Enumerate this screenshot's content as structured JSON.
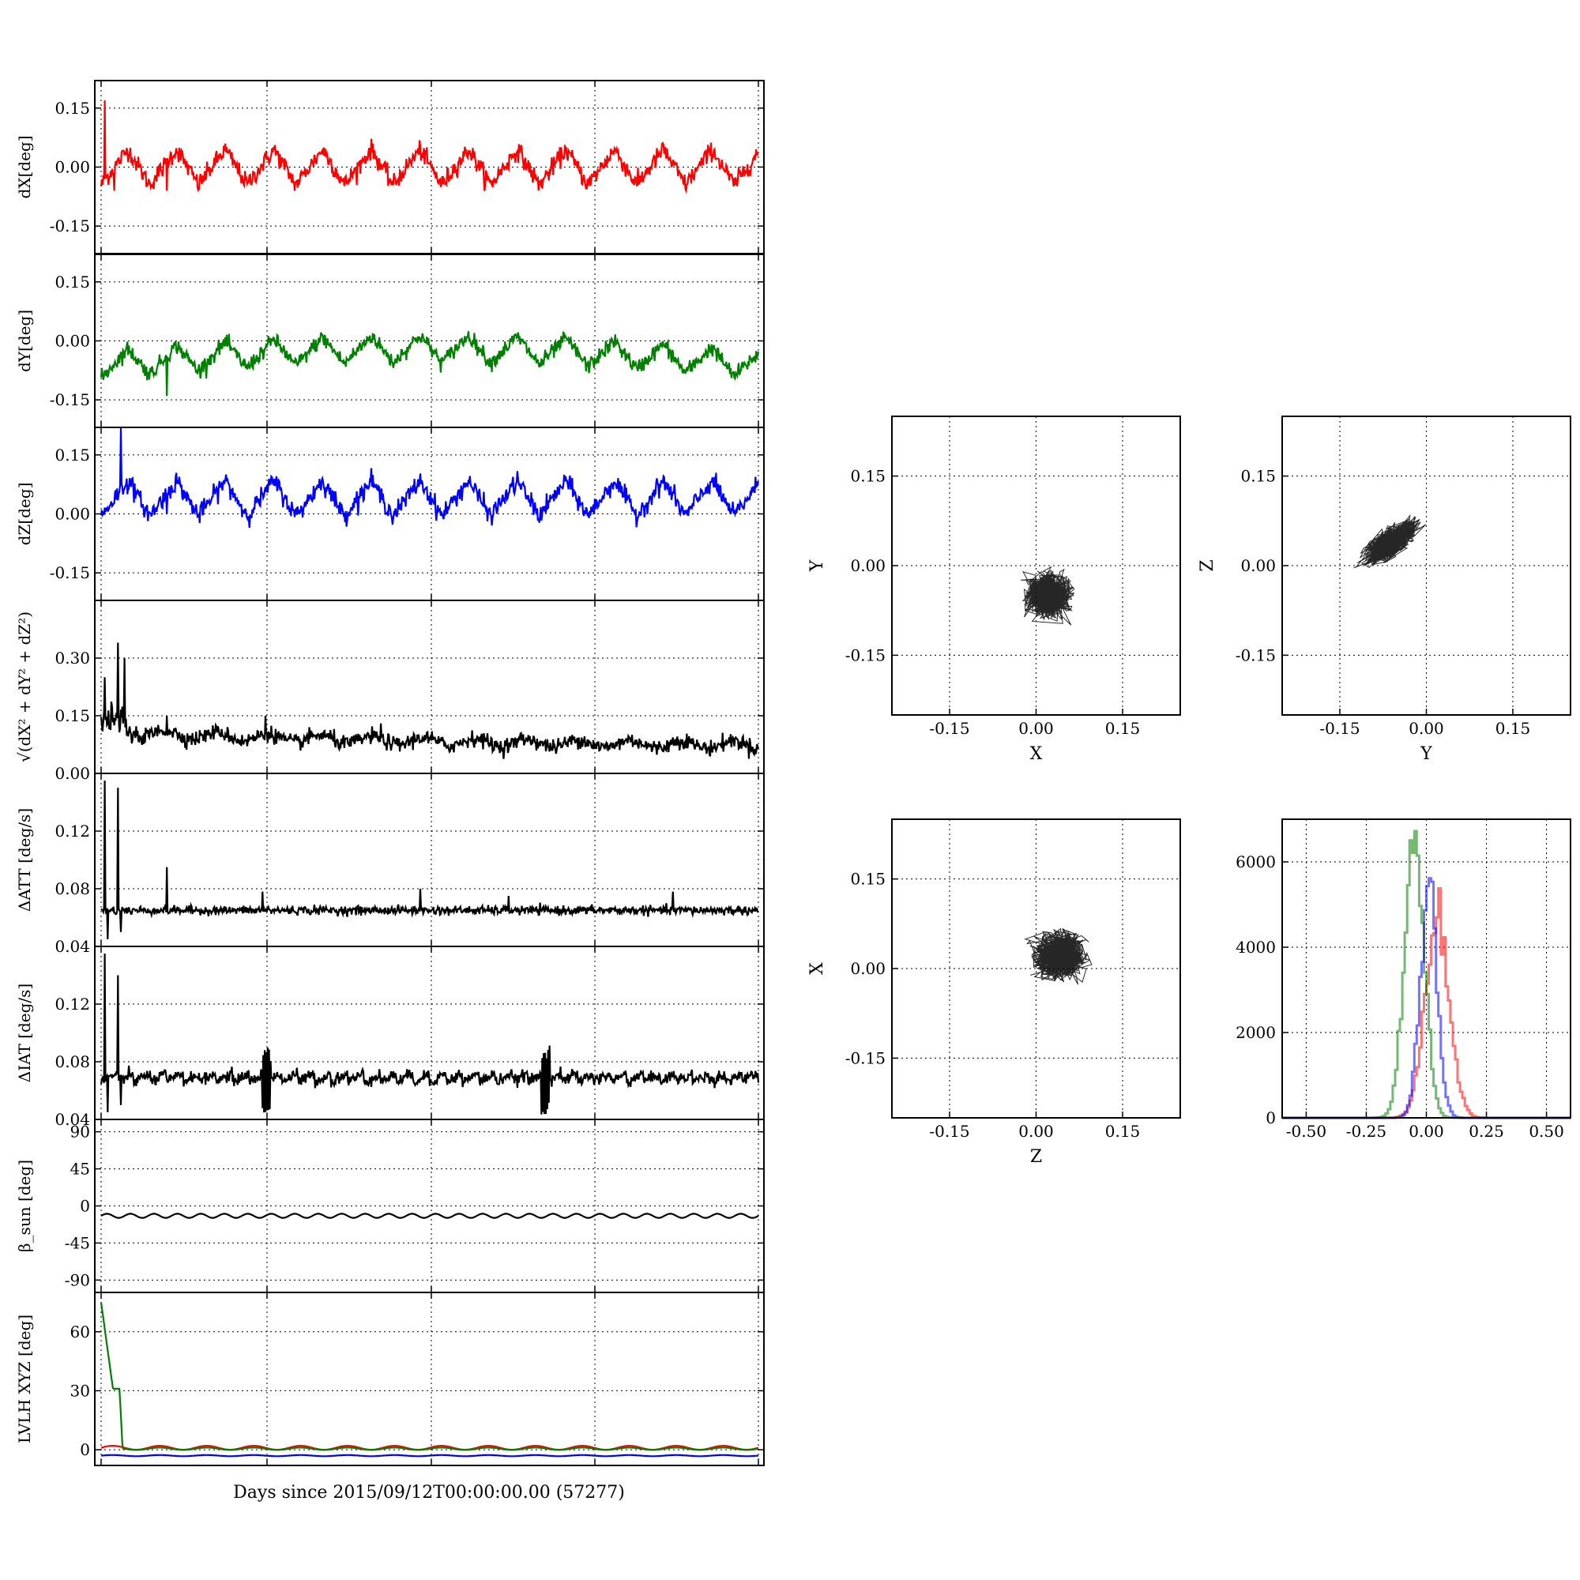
{
  "figure": {
    "xlabel_time": "Days since 2015/09/12T00:00:00.00 (57277)"
  },
  "colors": {
    "red": "#ff0000",
    "green": "#008000",
    "blue": "#0000ff",
    "black": "#000000"
  },
  "chart_data": [
    {
      "id": "ts_dx",
      "type": "line",
      "ylabel": "dX[deg]",
      "ylim": [
        -0.22,
        0.22
      ],
      "yticks": [
        "0.15",
        "0.00",
        "-0.15"
      ],
      "ytick_values": [
        0.15,
        0.0,
        -0.15
      ],
      "grid": true,
      "series": [
        {
          "color": "red",
          "style": "wave",
          "baseline": 0.0,
          "amplitude": 0.045,
          "cycles": 13.5,
          "noise": 0.012,
          "spikes": [
            {
              "x": 0.005,
              "y": 0.17
            },
            {
              "x": 0.02,
              "y": -0.06
            },
            {
              "x": 0.1,
              "y": -0.06
            }
          ]
        }
      ]
    },
    {
      "id": "ts_dy",
      "type": "line",
      "ylabel": "dY[deg]",
      "ylim": [
        -0.22,
        0.22
      ],
      "yticks": [
        "0.15",
        "0.00",
        "-0.15"
      ],
      "ytick_values": [
        0.15,
        0.0,
        -0.15
      ],
      "grid": true,
      "series": [
        {
          "color": "green",
          "style": "wave",
          "baseline": -0.06,
          "amplitude": 0.035,
          "cycles": 13.5,
          "noise": 0.01,
          "trend": 0.04,
          "spikes": [
            {
              "x": 0.1,
              "y": -0.14
            }
          ]
        }
      ]
    },
    {
      "id": "ts_dz",
      "type": "line",
      "ylabel": "dZ[deg]",
      "ylim": [
        -0.22,
        0.22
      ],
      "yticks": [
        "0.15",
        "0.00",
        "-0.15"
      ],
      "ytick_values": [
        0.15,
        0.0,
        -0.15
      ],
      "grid": true,
      "series": [
        {
          "color": "blue",
          "style": "wave",
          "baseline": 0.04,
          "amplitude": 0.045,
          "cycles": 13.5,
          "noise": 0.012,
          "spikes": [
            {
              "x": 0.03,
              "y": 0.22
            },
            {
              "x": 0.04,
              "y": 0.05
            },
            {
              "x": 0.1,
              "y": 0.0
            }
          ]
        }
      ]
    },
    {
      "id": "ts_mag",
      "type": "line",
      "ylabel": "√(dX² + dY² + dZ²)",
      "ylim": [
        0.0,
        0.45
      ],
      "yticks": [
        "0.30",
        "0.15",
        "0.00"
      ],
      "ytick_values": [
        0.3,
        0.15,
        0.0
      ],
      "grid": true,
      "series": [
        {
          "color": "black",
          "style": "decay",
          "start": 0.11,
          "end": 0.07,
          "noise": 0.01,
          "spikes": [
            {
              "x": 0.005,
              "y": 0.25
            },
            {
              "x": 0.025,
              "y": 0.34
            },
            {
              "x": 0.035,
              "y": 0.3
            },
            {
              "x": 0.1,
              "y": 0.15
            },
            {
              "x": 0.25,
              "y": 0.15
            },
            {
              "x": 0.425,
              "y": 0.13
            }
          ]
        }
      ]
    },
    {
      "id": "ts_datt",
      "type": "line",
      "ylabel": "ΔATT [deg/s]",
      "ylim": [
        0.04,
        0.16
      ],
      "yticks": [
        "0.12",
        "0.08",
        "0.04"
      ],
      "ytick_values": [
        0.12,
        0.08,
        0.04
      ],
      "grid": true,
      "series": [
        {
          "color": "black",
          "style": "flat",
          "level": 0.065,
          "noise": 0.0015,
          "spikes": [
            {
              "x": 0.005,
              "y": 0.155
            },
            {
              "x": 0.01,
              "y": 0.045
            },
            {
              "x": 0.025,
              "y": 0.15
            },
            {
              "x": 0.03,
              "y": 0.05
            },
            {
              "x": 0.1,
              "y": 0.095
            },
            {
              "x": 0.245,
              "y": 0.078
            },
            {
              "x": 0.485,
              "y": 0.08
            },
            {
              "x": 0.62,
              "y": 0.075
            },
            {
              "x": 0.87,
              "y": 0.078
            }
          ]
        }
      ]
    },
    {
      "id": "ts_diat",
      "type": "line",
      "ylabel": "ΔIAT [deg/s]",
      "ylim": [
        0.04,
        0.16
      ],
      "yticks": [
        "0.12",
        "0.08",
        "0.04"
      ],
      "ytick_values": [
        0.12,
        0.08,
        0.04
      ],
      "grid": true,
      "series": [
        {
          "color": "black",
          "style": "saw",
          "level": 0.066,
          "noise": 0.002,
          "spikes": [
            {
              "x": 0.005,
              "y": 0.155
            },
            {
              "x": 0.01,
              "y": 0.045
            },
            {
              "x": 0.025,
              "y": 0.14
            },
            {
              "x": 0.03,
              "y": 0.05
            }
          ],
          "bursts": [
            {
              "x": 0.245,
              "lo": 0.043,
              "hi": 0.09
            },
            {
              "x": 0.67,
              "lo": 0.043,
              "hi": 0.092
            }
          ]
        }
      ]
    },
    {
      "id": "ts_beta",
      "type": "line",
      "ylabel": "β_sun [deg]",
      "ylim": [
        -105,
        105
      ],
      "yticks": [
        "90",
        "45",
        "0",
        "-45",
        "-90"
      ],
      "ytick_values": [
        90,
        45,
        0,
        -45,
        -90
      ],
      "grid": true,
      "series": [
        {
          "color": "black",
          "style": "sine",
          "level": -12,
          "amplitude": 2.5,
          "cycles": 28
        }
      ]
    },
    {
      "id": "ts_lvlh",
      "type": "line",
      "ylabel": "LVLH XYZ [deg]",
      "ylim": [
        -8,
        80
      ],
      "yticks": [
        "60",
        "30",
        "0"
      ],
      "ytick_values": [
        60,
        30,
        0
      ],
      "grid": true,
      "xlabel": "Days since 2015/09/12T00:00:00.00 (57277)",
      "series": [
        {
          "color": "red",
          "style": "sine",
          "level": 1,
          "amplitude": 1,
          "cycles": 14
        },
        {
          "color": "green",
          "style": "lvlh_green"
        },
        {
          "color": "blue",
          "style": "sine",
          "level": -3,
          "amplitude": 0.3,
          "cycles": 14
        }
      ]
    },
    {
      "id": "sc_xy",
      "type": "scatter",
      "xlabel": "X",
      "ylabel": "Y",
      "xlim": [
        -0.25,
        0.25
      ],
      "ylim": [
        -0.25,
        0.25
      ],
      "xticks": [
        "-0.15",
        "0.00",
        "0.15"
      ],
      "xtick_values": [
        -0.15,
        0.0,
        0.15
      ],
      "yticks": [
        "0.15",
        "0.00",
        "-0.15"
      ],
      "ytick_values": [
        0.15,
        0.0,
        -0.15
      ],
      "grid": true,
      "cluster": {
        "cx": 0.02,
        "cy": -0.05,
        "rx": 0.06,
        "ry": 0.055,
        "angle": 0
      }
    },
    {
      "id": "sc_yz",
      "type": "scatter",
      "xlabel": "Y",
      "ylabel": "Z",
      "xlim": [
        -0.25,
        0.25
      ],
      "ylim": [
        -0.25,
        0.25
      ],
      "xticks": [
        "-0.15",
        "0.00",
        "0.15"
      ],
      "xtick_values": [
        -0.15,
        0.0,
        0.15
      ],
      "yticks": [
        "0.15",
        "0.00",
        "-0.15"
      ],
      "ytick_values": [
        0.15,
        0.0,
        -0.15
      ],
      "grid": true,
      "cluster": {
        "cx": -0.06,
        "cy": 0.04,
        "rx": 0.08,
        "ry": 0.03,
        "angle": 35
      }
    },
    {
      "id": "sc_zx",
      "type": "scatter",
      "xlabel": "Z",
      "ylabel": "X",
      "xlim": [
        -0.25,
        0.25
      ],
      "ylim": [
        -0.25,
        0.25
      ],
      "xticks": [
        "-0.15",
        "0.00",
        "0.15"
      ],
      "xtick_values": [
        -0.15,
        0.0,
        0.15
      ],
      "yticks": [
        "0.15",
        "0.00",
        "-0.15"
      ],
      "ytick_values": [
        0.15,
        0.0,
        -0.15
      ],
      "grid": true,
      "cluster": {
        "cx": 0.04,
        "cy": 0.02,
        "rx": 0.065,
        "ry": 0.06,
        "angle": 0
      }
    },
    {
      "id": "hist",
      "type": "bar",
      "xlim": [
        -0.6,
        0.6
      ],
      "ylim": [
        0,
        7000
      ],
      "xticks": [
        "-0.50",
        "-0.25",
        "0.00",
        "0.25",
        "0.50"
      ],
      "xtick_values": [
        -0.5,
        -0.25,
        0.0,
        0.25,
        0.5
      ],
      "yticks": [
        "6000",
        "4000",
        "2000",
        "0"
      ],
      "ytick_values": [
        6000,
        4000,
        2000,
        0
      ],
      "grid": true,
      "series": [
        {
          "color": "red",
          "mu": 0.04,
          "sigma": 0.05,
          "peak": 4800
        },
        {
          "color": "green",
          "mu": -0.055,
          "sigma": 0.04,
          "peak": 6800
        },
        {
          "color": "blue",
          "mu": 0.005,
          "sigma": 0.035,
          "peak": 5400
        }
      ]
    }
  ]
}
